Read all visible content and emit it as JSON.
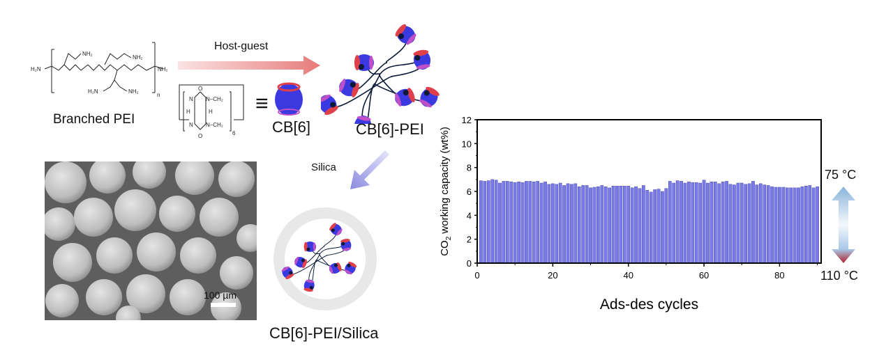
{
  "pei": {
    "name": "Branched PEI",
    "labels": {
      "nh2": "NH₂",
      "h2n": "H₂N",
      "n": "N",
      "h": "H",
      "sub_n": "n"
    }
  },
  "cb6": {
    "name": "CB[6]",
    "equiv": "≡",
    "labels": {
      "o": "O",
      "n": "N",
      "ch2": "N–CH₂",
      "h": "H",
      "sub": "6"
    },
    "colors": {
      "body": "#3a3ae0",
      "rim": "#e0404a"
    }
  },
  "arrows": {
    "host_guest": "Host-guest",
    "silica": "Silica"
  },
  "complex": {
    "name": "CB[6]-PEI"
  },
  "composite": {
    "name": "CB[6]-PEI/Silica"
  },
  "sem": {
    "scale_bar": "100 µm"
  },
  "cycle_arrow": {
    "top": "75 °C",
    "bottom": "110 °C",
    "top_color": "#8ab4dc",
    "bottom_color": "#b0202a"
  },
  "chart_data": {
    "type": "bar",
    "title": "",
    "xlabel": "Ads-des cycles",
    "ylabel_main": "CO",
    "ylabel_sub": "2",
    "ylabel_rest": " working capacity (wt%)",
    "xlim": [
      0,
      91
    ],
    "ylim": [
      0,
      12
    ],
    "xticks": [
      0,
      20,
      40,
      60,
      80
    ],
    "yticks": [
      0,
      2,
      4,
      6,
      8,
      10,
      12
    ],
    "bar_color": "#7b7be8",
    "grid": false,
    "x": [
      1,
      2,
      3,
      4,
      5,
      6,
      7,
      8,
      9,
      10,
      11,
      12,
      13,
      14,
      15,
      16,
      17,
      18,
      19,
      20,
      21,
      22,
      23,
      24,
      25,
      26,
      27,
      28,
      29,
      30,
      31,
      32,
      33,
      34,
      35,
      36,
      37,
      38,
      39,
      40,
      41,
      42,
      43,
      44,
      45,
      46,
      47,
      48,
      49,
      50,
      51,
      52,
      53,
      54,
      55,
      56,
      57,
      58,
      59,
      60,
      61,
      62,
      63,
      64,
      65,
      66,
      67,
      68,
      69,
      70,
      71,
      72,
      73,
      74,
      75,
      76,
      77,
      78,
      79,
      80,
      81,
      82,
      83,
      84,
      85,
      86,
      87,
      88,
      89,
      90
    ],
    "values": [
      6.9,
      6.85,
      6.9,
      7.0,
      6.95,
      6.7,
      6.85,
      6.85,
      6.8,
      6.75,
      6.8,
      6.75,
      6.85,
      6.85,
      6.8,
      6.85,
      6.7,
      6.8,
      6.6,
      6.65,
      6.6,
      6.7,
      6.5,
      6.65,
      6.6,
      6.65,
      6.4,
      6.5,
      6.5,
      6.3,
      6.35,
      6.4,
      6.5,
      6.4,
      6.3,
      6.45,
      6.45,
      6.45,
      6.45,
      6.45,
      6.3,
      6.4,
      6.25,
      6.5,
      6.1,
      5.95,
      6.15,
      6.2,
      6.0,
      6.25,
      6.85,
      6.7,
      6.9,
      6.85,
      6.7,
      6.8,
      6.75,
      6.75,
      6.7,
      6.95,
      6.7,
      6.8,
      6.8,
      6.65,
      6.8,
      6.85,
      6.6,
      6.55,
      6.7,
      6.7,
      6.6,
      6.65,
      6.85,
      6.55,
      6.65,
      6.55,
      6.5,
      6.4,
      6.35,
      6.35,
      6.35,
      6.3,
      6.3,
      6.3,
      6.3,
      6.4,
      6.45,
      6.5,
      6.3,
      6.4
    ]
  }
}
